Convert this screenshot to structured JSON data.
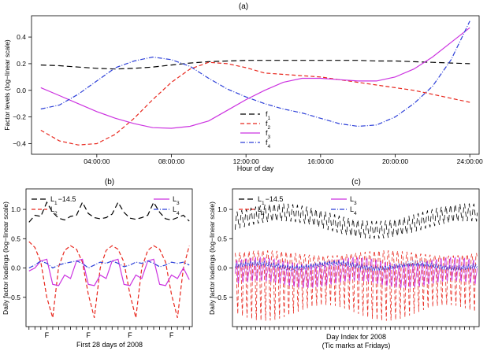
{
  "colors": {
    "f1": "#000000",
    "f2": "#e8281e",
    "f3": "#cc33e0",
    "f4": "#2c3fd8"
  },
  "chart_data": [
    {
      "panel": "(a)",
      "type": "line",
      "xlabel": "Hour of day",
      "ylabel": "Factor levels (log−linear scale)",
      "xlim": [
        0.5,
        24.5
      ],
      "ylim": [
        -0.48,
        0.56
      ],
      "xticks": [
        4,
        8,
        12,
        16,
        20,
        24
      ],
      "xtick_labels": [
        "04:00:00",
        "08:00:00",
        "12:00:00",
        "16:00:00",
        "20:00:00",
        "24:00:00"
      ],
      "yticks": [
        -0.4,
        -0.2,
        0.0,
        0.2,
        0.4
      ],
      "ytick_labels": [
        "−0.4",
        "−0.2",
        "0.0",
        "0.2",
        "0.4"
      ],
      "x": [
        1,
        2,
        3,
        4,
        5,
        6,
        7,
        8,
        9,
        10,
        11,
        12,
        13,
        14,
        15,
        16,
        17,
        18,
        19,
        20,
        21,
        22,
        23,
        24
      ],
      "series": [
        {
          "name": "f",
          "sub": "1",
          "style": "f1",
          "dash": "7,4",
          "values": [
            0.19,
            0.185,
            0.175,
            0.165,
            0.16,
            0.165,
            0.175,
            0.19,
            0.205,
            0.215,
            0.22,
            0.225,
            0.225,
            0.225,
            0.225,
            0.225,
            0.225,
            0.225,
            0.22,
            0.22,
            0.215,
            0.21,
            0.205,
            0.2
          ]
        },
        {
          "name": "f",
          "sub": "2",
          "style": "f2",
          "dash": "5,3",
          "values": [
            -0.3,
            -0.38,
            -0.41,
            -0.4,
            -0.33,
            -0.21,
            -0.07,
            0.06,
            0.16,
            0.21,
            0.2,
            0.17,
            0.13,
            0.12,
            0.11,
            0.1,
            0.08,
            0.06,
            0.04,
            0.02,
            0.0,
            -0.03,
            -0.06,
            -0.09
          ]
        },
        {
          "name": "f",
          "sub": "3",
          "style": "f3",
          "dash": "",
          "values": [
            0.02,
            -0.04,
            -0.1,
            -0.16,
            -0.21,
            -0.25,
            -0.28,
            -0.285,
            -0.27,
            -0.23,
            -0.15,
            -0.07,
            0.0,
            0.06,
            0.09,
            0.09,
            0.08,
            0.07,
            0.07,
            0.1,
            0.16,
            0.25,
            0.36,
            0.47
          ]
        },
        {
          "name": "f",
          "sub": "4",
          "style": "f4",
          "dash": "6,2,1,2",
          "values": [
            -0.14,
            -0.11,
            -0.03,
            0.07,
            0.17,
            0.22,
            0.25,
            0.23,
            0.18,
            0.09,
            0.01,
            -0.05,
            -0.1,
            -0.14,
            -0.17,
            -0.21,
            -0.25,
            -0.27,
            -0.26,
            -0.2,
            -0.1,
            0.03,
            0.23,
            0.52
          ]
        }
      ]
    },
    {
      "panel": "(b)",
      "type": "line",
      "xlabel": "First 28 days of 2008",
      "ylabel": "Daily factor loadings (log−linear scale)",
      "ylim": [
        -1.0,
        1.35
      ],
      "yticks": [
        -0.5,
        0.0,
        0.5,
        1.0
      ],
      "ytick_labels": [
        "−0.5",
        "0.0",
        "0.5",
        "1.0"
      ],
      "xtick_label": "F",
      "friday_days": [
        4,
        11,
        18,
        25
      ],
      "x": [
        1,
        2,
        3,
        4,
        5,
        6,
        7,
        8,
        9,
        10,
        11,
        12,
        13,
        14,
        15,
        16,
        17,
        18,
        19,
        20,
        21,
        22,
        23,
        24,
        25,
        26,
        27,
        28
      ],
      "series": [
        {
          "name": "L",
          "sub": "1",
          "suffix": "−14.5",
          "style": "f1",
          "dash": "7,4",
          "values": [
            0.78,
            0.9,
            0.88,
            1.12,
            0.95,
            0.85,
            0.82,
            0.88,
            0.9,
            1.12,
            0.93,
            0.86,
            0.84,
            0.86,
            0.92,
            1.12,
            0.95,
            0.85,
            0.83,
            0.86,
            0.9,
            1.12,
            0.95,
            0.84,
            0.82,
            0.86,
            0.9,
            0.8
          ]
        },
        {
          "name": "L",
          "sub": "2",
          "style": "f2",
          "dash": "5,3",
          "values": [
            0.45,
            0.35,
            0.1,
            -0.5,
            -0.85,
            0.02,
            0.3,
            0.38,
            0.32,
            0.1,
            -0.45,
            -0.85,
            0.0,
            0.3,
            0.38,
            0.32,
            0.1,
            -0.45,
            -0.85,
            0.0,
            0.3,
            0.38,
            0.32,
            0.1,
            -0.45,
            -0.85,
            0.0,
            0.38
          ]
        },
        {
          "name": "L",
          "sub": "3",
          "style": "f3",
          "dash": "",
          "values": [
            -0.05,
            0.0,
            0.12,
            0.15,
            -0.28,
            -0.3,
            -0.12,
            -0.18,
            0.12,
            0.15,
            -0.28,
            -0.3,
            -0.12,
            -0.18,
            0.12,
            0.15,
            -0.28,
            -0.3,
            -0.12,
            -0.18,
            0.12,
            0.15,
            -0.28,
            -0.3,
            -0.12,
            -0.18,
            0.0,
            -0.2
          ]
        },
        {
          "name": "L",
          "sub": "4",
          "style": "f4",
          "dash": "6,2,1,2",
          "values": [
            0.0,
            0.05,
            0.12,
            0.08,
            0.0,
            0.05,
            0.08,
            0.1,
            0.12,
            0.08,
            0.0,
            0.05,
            0.1,
            0.08,
            0.12,
            0.08,
            0.02,
            0.05,
            0.1,
            0.08,
            0.12,
            0.08,
            0.02,
            0.05,
            0.1,
            0.08,
            0.1,
            0.05
          ]
        }
      ]
    },
    {
      "panel": "(c)",
      "type": "line",
      "xlabel": "Day Index for 2008",
      "xlabel2": "(Tic marks at Fridays)",
      "ylabel": "Daily factor loadings (log−linear scale)",
      "ylim": [
        -1.0,
        1.35
      ],
      "yticks": [
        -0.5,
        0.0,
        0.5,
        1.0
      ],
      "ytick_labels": [
        "−0.5",
        "0.0",
        "0.5",
        "1.0"
      ],
      "n_days": 366,
      "friday_days": [
        4,
        11,
        18,
        25,
        32,
        39,
        46,
        53,
        60,
        67,
        74,
        81,
        88,
        95,
        102,
        109,
        116,
        123,
        130,
        137,
        144,
        151,
        158,
        165,
        172,
        179,
        186,
        193,
        200,
        207,
        214,
        221,
        228,
        235,
        242,
        249,
        256,
        263,
        270,
        277,
        284,
        291,
        298,
        305,
        312,
        319,
        326,
        333,
        340,
        347,
        354,
        361
      ],
      "weekly_pattern": {
        "L1": [
          0.7,
          0.85,
          0.95,
          1.0,
          0.9,
          0.8,
          0.75
        ],
        "L2": [
          0.3,
          0.2,
          0.0,
          -0.6,
          -0.9,
          -0.1,
          0.25
        ],
        "L3": [
          -0.1,
          0.0,
          0.1,
          0.12,
          -0.25,
          -0.28,
          -0.15
        ],
        "L4": [
          0.0,
          0.03,
          0.08,
          0.05,
          0.0,
          0.04,
          0.06
        ]
      },
      "series": [
        {
          "name": "L",
          "sub": "1",
          "suffix": "−14.5",
          "style": "f1",
          "dash": "7,4"
        },
        {
          "name": "L",
          "sub": "2",
          "style": "f2",
          "dash": "5,3"
        },
        {
          "name": "L",
          "sub": "3",
          "style": "f3",
          "dash": ""
        },
        {
          "name": "L",
          "sub": "4",
          "style": "f4",
          "dash": "6,2,1,2"
        }
      ]
    }
  ]
}
